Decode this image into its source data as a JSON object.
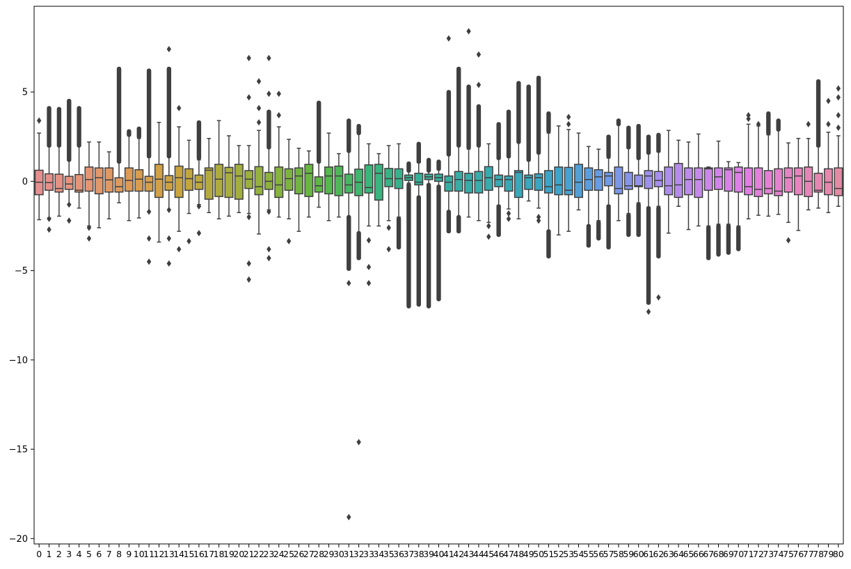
{
  "chart_data": {
    "type": "box",
    "title": "",
    "xlabel": "",
    "ylabel": "",
    "x_tick_labels": [
      "0",
      "1",
      "2",
      "3",
      "4",
      "5",
      "6",
      "7",
      "8",
      "9",
      "10",
      "11",
      "12",
      "13",
      "14",
      "15",
      "16",
      "17",
      "18",
      "19",
      "20",
      "21",
      "22",
      "23",
      "24",
      "25",
      "26",
      "27",
      "28",
      "29",
      "30",
      "31",
      "32",
      "33",
      "34",
      "35",
      "36",
      "37",
      "38",
      "39",
      "40",
      "41",
      "42",
      "43",
      "44",
      "45",
      "46",
      "47",
      "48",
      "49",
      "50",
      "51",
      "52",
      "53",
      "54",
      "55",
      "56",
      "57",
      "58",
      "59",
      "60",
      "61",
      "62",
      "63",
      "64",
      "65",
      "66",
      "67",
      "68",
      "69",
      "70",
      "71",
      "72",
      "73",
      "74",
      "75",
      "76",
      "77",
      "78",
      "79",
      "80"
    ],
    "y_tick_labels": [
      "−20",
      "−15",
      "−10",
      "−5",
      "0",
      "5"
    ],
    "yticks": [
      -20,
      -15,
      -10,
      -5,
      0,
      5
    ],
    "ylim": [
      -20.3,
      9.8
    ],
    "grid": false,
    "legend": "none",
    "boxes": [
      {
        "q1": -0.75,
        "median": -0.05,
        "q3": 0.62,
        "wlow": -2.15,
        "whigh": 2.7,
        "out_lo": [],
        "out_hi": [
          3.4
        ]
      },
      {
        "q1": -0.5,
        "median": -0.07,
        "q3": 0.42,
        "wlow": -2.05,
        "whigh": 1.95,
        "out_lo": [
          -2.7,
          -2.1
        ],
        "out_hi": [
          2.0,
          4.1
        ]
      },
      {
        "q1": -0.6,
        "median": -0.4,
        "q3": 0.4,
        "wlow": -1.95,
        "whigh": 2.0,
        "out_lo": [],
        "out_hi": [
          2.0,
          4.05
        ]
      },
      {
        "q1": -0.45,
        "median": -0.15,
        "q3": 0.28,
        "wlow": -1.3,
        "whigh": 1.2,
        "out_lo": [
          -2.2,
          -1.3
        ],
        "out_hi": [
          1.2,
          4.5
        ]
      },
      {
        "q1": -0.6,
        "median": -0.5,
        "q3": 0.38,
        "wlow": -1.5,
        "whigh": 2.0,
        "out_lo": [],
        "out_hi": [
          2.0,
          4.1
        ]
      },
      {
        "q1": -0.55,
        "median": 0.1,
        "q3": 0.8,
        "wlow": -2.5,
        "whigh": 2.2,
        "out_lo": [
          -3.2,
          -2.6
        ],
        "out_hi": []
      },
      {
        "q1": -0.7,
        "median": 0.2,
        "q3": 0.75,
        "wlow": -2.6,
        "whigh": 2.2,
        "out_lo": [],
        "out_hi": []
      },
      {
        "q1": -0.6,
        "median": 0.08,
        "q3": 0.75,
        "wlow": -2.1,
        "whigh": 1.65,
        "out_lo": [],
        "out_hi": []
      },
      {
        "q1": -0.6,
        "median": -0.3,
        "q3": 0.2,
        "wlow": -1.2,
        "whigh": 1.1,
        "out_lo": [],
        "out_hi": [
          1.1,
          6.3
        ]
      },
      {
        "q1": -0.55,
        "median": 0.05,
        "q3": 0.75,
        "wlow": -2.2,
        "whigh": 2.6,
        "out_lo": [],
        "out_hi": [
          2.6,
          2.8
        ]
      },
      {
        "q1": -0.55,
        "median": 0.12,
        "q3": 0.65,
        "wlow": -2.05,
        "whigh": 2.4,
        "out_lo": [],
        "out_hi": [
          2.5,
          2.95
        ]
      },
      {
        "q1": -0.55,
        "median": -0.05,
        "q3": 0.28,
        "wlow": -1.7,
        "whigh": 1.4,
        "out_lo": [
          -3.2,
          -1.7,
          -4.5
        ],
        "out_hi": [
          1.4,
          6.2
        ]
      },
      {
        "q1": -0.9,
        "median": 0.12,
        "q3": 0.95,
        "wlow": -3.4,
        "whigh": 3.3,
        "out_lo": [],
        "out_hi": []
      },
      {
        "q1": -0.5,
        "median": -0.05,
        "q3": 0.32,
        "wlow": -1.6,
        "whigh": 1.4,
        "out_lo": [
          -3.2,
          -1.6,
          -4.6
        ],
        "out_hi": [
          1.4,
          6.3,
          7.4
        ]
      },
      {
        "q1": -0.9,
        "median": 0.2,
        "q3": 0.85,
        "wlow": -2.8,
        "whigh": 3.05,
        "out_lo": [
          -3.8
        ],
        "out_hi": [
          4.1
        ]
      },
      {
        "q1": -0.5,
        "median": 0.15,
        "q3": 0.7,
        "wlow": -1.8,
        "whigh": 2.3,
        "out_lo": [
          -3.35
        ],
        "out_hi": []
      },
      {
        "q1": -0.45,
        "median": -0.05,
        "q3": 0.35,
        "wlow": -1.3,
        "whigh": 1.2,
        "out_lo": [
          -2.9,
          -1.4
        ],
        "out_hi": [
          1.3,
          3.3
        ]
      },
      {
        "q1": -1.0,
        "median": 0.62,
        "q3": 0.75,
        "wlow": -1.75,
        "whigh": 2.4,
        "out_lo": [],
        "out_hi": []
      },
      {
        "q1": -0.85,
        "median": 0.12,
        "q3": 0.95,
        "wlow": -2.1,
        "whigh": 3.4,
        "out_lo": [],
        "out_hi": []
      },
      {
        "q1": -0.9,
        "median": 0.48,
        "q3": 0.78,
        "wlow": -1.95,
        "whigh": 2.55,
        "out_lo": [],
        "out_hi": []
      },
      {
        "q1": -1.0,
        "median": 0.3,
        "q3": 0.95,
        "wlow": -1.75,
        "whigh": 2.0,
        "out_lo": [],
        "out_hi": []
      },
      {
        "q1": -0.4,
        "median": 0.12,
        "q3": 0.6,
        "wlow": -1.8,
        "whigh": 2.0,
        "out_lo": [
          -2.0,
          -4.6,
          -5.5
        ],
        "out_hi": [
          4.7,
          6.9
        ]
      },
      {
        "q1": -0.75,
        "median": -0.3,
        "q3": 0.82,
        "wlow": -2.95,
        "whigh": 2.85,
        "out_lo": [],
        "out_hi": [
          3.3,
          4.1,
          5.6
        ]
      },
      {
        "q1": -0.45,
        "median": 0.0,
        "q3": 0.5,
        "wlow": -1.6,
        "whigh": 1.9,
        "out_lo": [
          -3.8,
          -1.7,
          -4.3
        ],
        "out_hi": [
          1.9,
          3.9,
          4.9,
          6.9
        ]
      },
      {
        "q1": -0.9,
        "median": -0.2,
        "q3": 0.8,
        "wlow": -2.0,
        "whigh": 3.05,
        "out_lo": [],
        "out_hi": [
          3.7,
          4.9
        ]
      },
      {
        "q1": -0.5,
        "median": 0.15,
        "q3": 0.7,
        "wlow": -2.1,
        "whigh": 2.35,
        "out_lo": [
          -3.35
        ],
        "out_hi": []
      },
      {
        "q1": -0.7,
        "median": 0.3,
        "q3": 0.75,
        "wlow": -2.8,
        "whigh": 1.85,
        "out_lo": [],
        "out_hi": []
      },
      {
        "q1": -0.85,
        "median": 0.45,
        "q3": 0.95,
        "wlow": -2.0,
        "whigh": 1.7,
        "out_lo": [],
        "out_hi": []
      },
      {
        "q1": -0.6,
        "median": -0.25,
        "q3": 0.25,
        "wlow": -1.45,
        "whigh": 1.15,
        "out_lo": [],
        "out_hi": [
          1.1,
          4.4
        ]
      },
      {
        "q1": -0.7,
        "median": 0.3,
        "q3": 0.8,
        "wlow": -2.2,
        "whigh": 2.7,
        "out_lo": [],
        "out_hi": []
      },
      {
        "q1": -0.8,
        "median": 0.3,
        "q3": 0.85,
        "wlow": -2.0,
        "whigh": 1.55,
        "out_lo": [],
        "out_hi": []
      },
      {
        "q1": -0.65,
        "median": -0.2,
        "q3": 0.4,
        "wlow": -2.0,
        "whigh": 1.7,
        "out_lo": [
          -2.0,
          -4.9,
          -5.7,
          -18.8
        ],
        "out_hi": [
          1.7,
          3.4
        ]
      },
      {
        "q1": -0.8,
        "median": -0.05,
        "q3": 0.68,
        "wlow": -2.9,
        "whigh": 2.7,
        "out_lo": [
          -2.9,
          -4.3,
          -14.6
        ],
        "out_hi": [
          2.7,
          3.1
        ]
      },
      {
        "q1": -0.65,
        "median": -0.35,
        "q3": 0.92,
        "wlow": -2.5,
        "whigh": 2.1,
        "out_lo": [
          -3.3,
          -4.8,
          -5.7
        ],
        "out_hi": []
      },
      {
        "q1": -1.05,
        "median": 0.45,
        "q3": 0.95,
        "wlow": -2.5,
        "whigh": 1.55,
        "out_lo": [],
        "out_hi": []
      },
      {
        "q1": -0.3,
        "median": 0.15,
        "q3": 0.72,
        "wlow": -2.2,
        "whigh": 2.0,
        "out_lo": [
          -2.6,
          -3.8
        ],
        "out_hi": []
      },
      {
        "q1": -0.4,
        "median": 0.15,
        "q3": 0.7,
        "wlow": -2.0,
        "whigh": 2.1,
        "out_lo": [
          -2.1,
          -3.7
        ],
        "out_hi": []
      },
      {
        "q1": 0.05,
        "median": 0.2,
        "q3": 0.35,
        "wlow": -0.1,
        "whigh": 0.55,
        "out_lo": [
          -0.2,
          -7.0
        ],
        "out_hi": [
          0.6,
          1.0
        ]
      },
      {
        "q1": -0.2,
        "median": -0.05,
        "q3": 0.45,
        "wlow": -0.85,
        "whigh": 1.05,
        "out_lo": [
          -0.9,
          -6.9
        ],
        "out_hi": [
          1.1,
          2.1
        ]
      },
      {
        "q1": 0.1,
        "median": 0.25,
        "q3": 0.4,
        "wlow": -0.15,
        "whigh": 0.6,
        "out_lo": [
          -0.2,
          -7.0
        ],
        "out_hi": [
          0.6,
          1.2
        ]
      },
      {
        "q1": 0.0,
        "median": 0.2,
        "q3": 0.4,
        "wlow": -0.25,
        "whigh": 0.65,
        "out_lo": [
          -0.3,
          -6.6
        ],
        "out_hi": [
          0.7,
          1.1
        ]
      },
      {
        "q1": -0.55,
        "median": -0.05,
        "q3": 0.3,
        "wlow": -1.7,
        "whigh": 1.5,
        "out_lo": [
          -1.7,
          -2.8
        ],
        "out_hi": [
          1.5,
          5.0,
          8.0
        ]
      },
      {
        "q1": -0.55,
        "median": 0.1,
        "q3": 0.55,
        "wlow": -2.0,
        "whigh": 2.0,
        "out_lo": [
          -2.0,
          -2.8
        ],
        "out_hi": [
          2.0,
          6.3
        ]
      },
      {
        "q1": -0.65,
        "median": 0.05,
        "q3": 0.45,
        "wlow": -2.0,
        "whigh": 1.8,
        "out_lo": [],
        "out_hi": [
          1.9,
          5.3,
          8.4
        ]
      },
      {
        "q1": -0.65,
        "median": 0.05,
        "q3": 0.55,
        "wlow": -2.2,
        "whigh": 2.0,
        "out_lo": [],
        "out_hi": [
          2.0,
          4.2,
          5.4,
          7.1
        ]
      },
      {
        "q1": -0.5,
        "median": 0.2,
        "q3": 0.82,
        "wlow": -2.3,
        "whigh": 2.1,
        "out_lo": [
          -2.5,
          -3.1
        ],
        "out_hi": []
      },
      {
        "q1": -0.3,
        "median": 0.1,
        "q3": 0.35,
        "wlow": -1.35,
        "whigh": 1.25,
        "out_lo": [
          -1.4,
          -3.0
        ],
        "out_hi": [
          1.3,
          3.2
        ]
      },
      {
        "q1": -0.55,
        "median": 0.1,
        "q3": 0.3,
        "wlow": -1.55,
        "whigh": 1.35,
        "out_lo": [
          -1.8,
          -2.1
        ],
        "out_hi": [
          1.4,
          3.9
        ]
      },
      {
        "q1": -0.9,
        "median": 0.5,
        "q3": 0.6,
        "wlow": -2.1,
        "whigh": 2.2,
        "out_lo": [],
        "out_hi": [
          2.2,
          5.5
        ]
      },
      {
        "q1": -0.45,
        "median": 0.2,
        "q3": 0.35,
        "wlow": -1.1,
        "whigh": 1.2,
        "out_lo": [],
        "out_hi": [
          1.2,
          5.3
        ]
      },
      {
        "q1": -0.5,
        "median": 0.2,
        "q3": 0.42,
        "wlow": -1.5,
        "whigh": 1.6,
        "out_lo": [
          -2.0,
          -2.2
        ],
        "out_hi": [
          1.6,
          5.8
        ]
      },
      {
        "q1": -0.65,
        "median": -0.3,
        "q3": 0.6,
        "wlow": -2.8,
        "whigh": 2.7,
        "out_lo": [
          -2.8,
          -4.2
        ],
        "out_hi": [
          2.8,
          3.8
        ]
      },
      {
        "q1": -0.75,
        "median": -0.2,
        "q3": 0.8,
        "wlow": -3.0,
        "whigh": 3.1,
        "out_lo": [],
        "out_hi": []
      },
      {
        "q1": -0.75,
        "median": -0.5,
        "q3": 0.78,
        "wlow": -2.8,
        "whigh": 2.9,
        "out_lo": [],
        "out_hi": [
          3.2,
          3.6
        ]
      },
      {
        "q1": -0.9,
        "median": -0.05,
        "q3": 0.95,
        "wlow": -1.6,
        "whigh": 2.7,
        "out_lo": [],
        "out_hi": []
      },
      {
        "q1": -0.5,
        "median": 0.1,
        "q3": 0.75,
        "wlow": -2.5,
        "whigh": 1.95,
        "out_lo": [
          -2.5,
          -3.6
        ],
        "out_hi": []
      },
      {
        "q1": -0.5,
        "median": 0.25,
        "q3": 0.65,
        "wlow": -2.2,
        "whigh": 1.8,
        "out_lo": [
          -2.3,
          -3.2
        ],
        "out_hi": []
      },
      {
        "q1": -0.25,
        "median": 0.3,
        "q3": 0.5,
        "wlow": -1.35,
        "whigh": 1.3,
        "out_lo": [
          -1.4,
          -3.7
        ],
        "out_hi": [
          1.4,
          2.5
        ]
      },
      {
        "q1": -0.7,
        "median": -0.4,
        "q3": 0.8,
        "wlow": -2.2,
        "whigh": 3.2,
        "out_lo": [],
        "out_hi": [
          3.2,
          3.4
        ]
      },
      {
        "q1": -0.45,
        "median": -0.25,
        "q3": 0.5,
        "wlow": -1.8,
        "whigh": 1.85,
        "out_lo": [
          -1.9,
          -3.0
        ],
        "out_hi": [
          1.9,
          3.0
        ]
      },
      {
        "q1": -0.3,
        "median": -0.25,
        "q3": 0.35,
        "wlow": -1.2,
        "whigh": 1.25,
        "out_lo": [
          -1.3,
          -3.0
        ],
        "out_hi": [
          1.3,
          3.1
        ]
      },
      {
        "q1": -0.4,
        "median": 0.3,
        "q3": 0.6,
        "wlow": -1.45,
        "whigh": 1.55,
        "out_lo": [
          -1.5,
          -6.8,
          -7.3
        ],
        "out_hi": [
          1.6,
          2.5
        ]
      },
      {
        "q1": -0.3,
        "median": 0.05,
        "q3": 0.55,
        "wlow": -1.4,
        "whigh": 1.65,
        "out_lo": [
          -1.5,
          -4.2,
          -6.5
        ],
        "out_hi": [
          1.7,
          2.6
        ]
      },
      {
        "q1": -0.75,
        "median": -0.25,
        "q3": 0.8,
        "wlow": -2.9,
        "whigh": 2.85,
        "out_lo": [],
        "out_hi": []
      },
      {
        "q1": -0.9,
        "median": -0.2,
        "q3": 1.0,
        "wlow": -1.4,
        "whigh": 2.3,
        "out_lo": [],
        "out_hi": []
      },
      {
        "q1": -0.75,
        "median": 0.1,
        "q3": 0.75,
        "wlow": -2.7,
        "whigh": 2.2,
        "out_lo": [],
        "out_hi": []
      },
      {
        "q1": -0.9,
        "median": 0.1,
        "q3": 0.75,
        "wlow": -2.5,
        "whigh": 2.65,
        "out_lo": [],
        "out_hi": []
      },
      {
        "q1": -0.5,
        "median": 0.7,
        "q3": 0.75,
        "wlow": -2.5,
        "whigh": 0.8,
        "out_lo": [
          -2.6,
          -4.3
        ],
        "out_hi": []
      },
      {
        "q1": -0.45,
        "median": 0.25,
        "q3": 0.75,
        "wlow": -2.4,
        "whigh": 2.25,
        "out_lo": [
          -2.5,
          -4.1
        ],
        "out_hi": []
      },
      {
        "q1": -0.55,
        "median": 0.65,
        "q3": 0.75,
        "wlow": -2.4,
        "whigh": 1.1,
        "out_lo": [
          -2.5,
          -4.0
        ],
        "out_hi": []
      },
      {
        "q1": -0.6,
        "median": 0.5,
        "q3": 0.8,
        "wlow": -2.5,
        "whigh": 1.05,
        "out_lo": [
          -2.6,
          -3.8
        ],
        "out_hi": []
      },
      {
        "q1": -0.75,
        "median": -0.3,
        "q3": 0.75,
        "wlow": -2.1,
        "whigh": 3.2,
        "out_lo": [],
        "out_hi": [
          3.5,
          3.7
        ]
      },
      {
        "q1": -0.85,
        "median": -0.45,
        "q3": 0.75,
        "wlow": -1.9,
        "whigh": 3.1,
        "out_lo": [],
        "out_hi": [
          3.2
        ]
      },
      {
        "q1": -0.7,
        "median": -0.4,
        "q3": 0.6,
        "wlow": -1.95,
        "whigh": 2.6,
        "out_lo": [],
        "out_hi": [
          2.7,
          3.8
        ]
      },
      {
        "q1": -0.8,
        "median": -0.55,
        "q3": 0.7,
        "wlow": -1.85,
        "whigh": 2.9,
        "out_lo": [],
        "out_hi": [
          2.9,
          3.4
        ]
      },
      {
        "q1": -0.6,
        "median": 0.2,
        "q3": 0.75,
        "wlow": -2.3,
        "whigh": 2.15,
        "out_lo": [
          -3.3
        ],
        "out_hi": []
      },
      {
        "q1": -0.75,
        "median": 0.3,
        "q3": 0.75,
        "wlow": -2.75,
        "whigh": 2.4,
        "out_lo": [],
        "out_hi": []
      },
      {
        "q1": -0.85,
        "median": 0.0,
        "q3": 0.8,
        "wlow": -1.6,
        "whigh": 2.4,
        "out_lo": [],
        "out_hi": [
          3.2
        ]
      },
      {
        "q1": -0.6,
        "median": -0.5,
        "q3": 0.45,
        "wlow": -1.5,
        "whigh": 1.95,
        "out_lo": [],
        "out_hi": [
          2.0,
          5.6
        ]
      },
      {
        "q1": -0.75,
        "median": -0.05,
        "q3": 0.7,
        "wlow": -1.75,
        "whigh": 2.75,
        "out_lo": [],
        "out_hi": [
          3.2,
          4.5
        ]
      },
      {
        "q1": -0.8,
        "median": -0.4,
        "q3": 0.75,
        "wlow": -1.4,
        "whigh": 2.55,
        "out_lo": [],
        "out_hi": [
          3.0,
          3.7,
          4.7,
          5.2
        ]
      }
    ],
    "colors": {
      "box_line": "#3f3f3f",
      "background": "#ffffff",
      "axis": "#000000",
      "palette": [
        "#e68f91",
        "#e49675",
        "#dc9c52",
        "#c8a43e",
        "#a9ae3f",
        "#8cb23e",
        "#5cb845",
        "#3ab67a",
        "#37b096",
        "#37ada6",
        "#39a9b5",
        "#3ca4c8",
        "#6b9be6",
        "#a090ec",
        "#c48aea",
        "#e07ee6",
        "#e683c3",
        "#e48ba4"
      ]
    }
  }
}
